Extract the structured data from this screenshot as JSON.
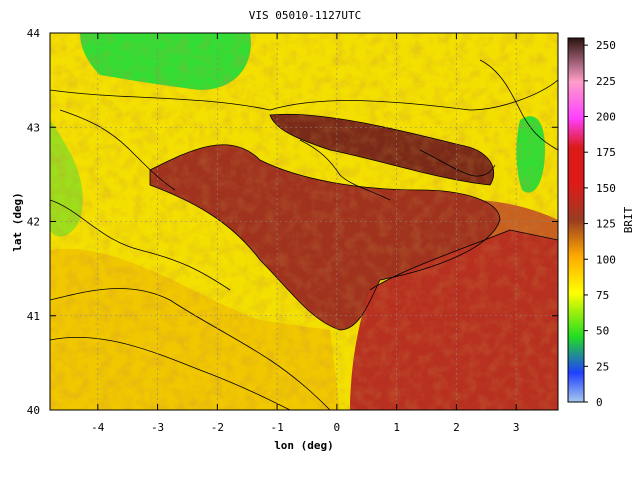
{
  "chart_data": {
    "type": "heatmap",
    "title": "VIS 05010-1127UTC",
    "xlabel": "lon (deg)",
    "ylabel": "lat (deg)",
    "xlim": [
      -4.8,
      3.7
    ],
    "ylim": [
      40,
      44
    ],
    "xticks": [
      -4,
      -3,
      -2,
      -1,
      0,
      1,
      2,
      3
    ],
    "yticks": [
      40,
      41,
      42,
      43,
      44
    ],
    "xtick_labels": [
      "-4",
      "-3",
      "-2",
      "-1",
      "0",
      "1",
      "2",
      "3"
    ],
    "ytick_labels": [
      "40",
      "41",
      "42",
      "43",
      "44"
    ],
    "grid": true,
    "colorbar": {
      "label": "BRIT",
      "range": [
        0,
        255
      ],
      "ticks": [
        0,
        25,
        50,
        75,
        100,
        125,
        150,
        175,
        200,
        225,
        250
      ],
      "tick_labels": [
        "0",
        "25",
        "50",
        "75",
        "100",
        "125",
        "150",
        "175",
        "200",
        "225",
        "250"
      ]
    },
    "colors": {
      "low": "#a6c8ec",
      "blue": "#2040ff",
      "green": "#22dd22",
      "yellow": "#ffff00",
      "orange": "#ffaa00",
      "brown": "#9b3b22",
      "red": "#dd1a1a",
      "magenta": "#ff40ff",
      "pink": "#ff9ec8",
      "dark": "#2a1410"
    }
  }
}
